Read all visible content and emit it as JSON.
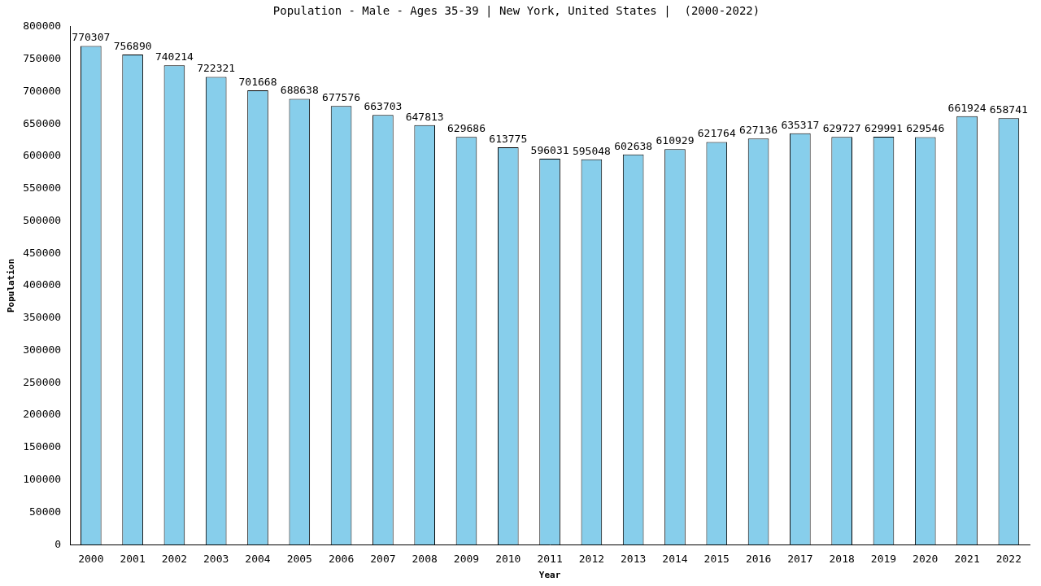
{
  "chart_data": {
    "type": "bar",
    "title": "Population - Male - Ages 35-39 | New York, United States |  (2000-2022)",
    "x_label": "Year",
    "y_label": "Population",
    "categories": [
      "2000",
      "2001",
      "2002",
      "2003",
      "2004",
      "2005",
      "2006",
      "2007",
      "2008",
      "2009",
      "2010",
      "2011",
      "2012",
      "2013",
      "2014",
      "2015",
      "2016",
      "2017",
      "2018",
      "2019",
      "2020",
      "2021",
      "2022"
    ],
    "values": [
      770307,
      756890,
      740214,
      722321,
      701668,
      688638,
      677576,
      663703,
      647813,
      629686,
      613775,
      596031,
      595048,
      602638,
      610929,
      621764,
      627136,
      635317,
      629727,
      629991,
      629546,
      661924,
      658741
    ],
    "color": "#87ceeb",
    "ylim": [
      0,
      800000
    ],
    "yticks": [
      0,
      50000,
      100000,
      150000,
      200000,
      250000,
      300000,
      350000,
      400000,
      450000,
      500000,
      550000,
      600000,
      650000,
      700000,
      750000,
      800000
    ],
    "grid": false,
    "data_labels": true
  }
}
